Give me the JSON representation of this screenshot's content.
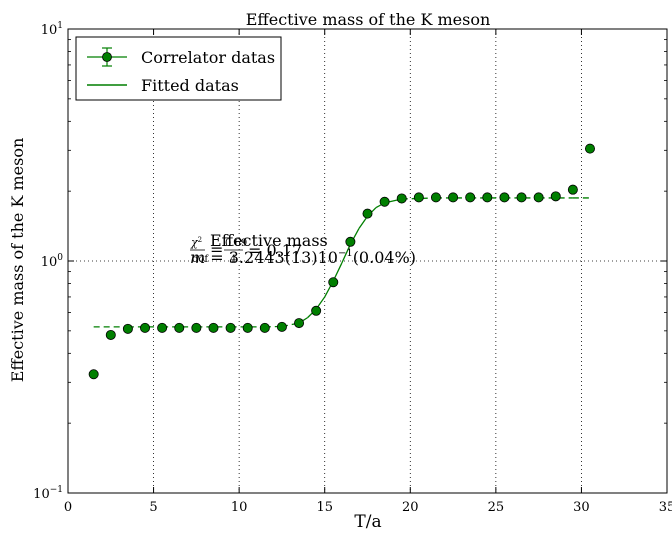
{
  "chart_data": {
    "type": "scatter",
    "title": "Effective mass of the K meson",
    "xlabel": "T/a",
    "ylabel": "Effective mass of the K meson",
    "xlim": [
      0,
      35
    ],
    "ylim": [
      0.1,
      10
    ],
    "y_scale": "log",
    "grid": true,
    "legend_position": "top-left",
    "x_ticks": [
      0,
      5,
      10,
      15,
      20,
      25,
      30,
      35
    ],
    "x_tick_labels": [
      "0",
      "5",
      "10",
      "15",
      "20",
      "25",
      "30",
      "35"
    ],
    "y_ticks": [
      0.1,
      1,
      10
    ],
    "y_tick_bases": [
      "10",
      "10",
      "10"
    ],
    "y_tick_exps": [
      "−1",
      "0",
      "1"
    ],
    "series": [
      {
        "name": "Correlator datas",
        "style": "points-with-errorbars",
        "color": "#007f00",
        "x": [
          1.5,
          2.5,
          3.5,
          4.5,
          5.5,
          6.5,
          7.5,
          8.5,
          9.5,
          10.5,
          11.5,
          12.5,
          13.5,
          14.5,
          15.5,
          16.5,
          17.5,
          18.5,
          19.5,
          20.5,
          21.5,
          22.5,
          23.5,
          24.5,
          25.5,
          26.5,
          27.5,
          28.5,
          29.5,
          30.5
        ],
        "y": [
          0.325,
          0.48,
          0.51,
          0.515,
          0.515,
          0.515,
          0.515,
          0.515,
          0.515,
          0.515,
          0.515,
          0.52,
          0.54,
          0.61,
          0.81,
          1.21,
          1.6,
          1.8,
          1.86,
          1.88,
          1.88,
          1.88,
          1.88,
          1.88,
          1.88,
          1.88,
          1.88,
          1.9,
          2.03,
          3.05
        ]
      },
      {
        "name": "Fitted datas",
        "style": "line",
        "color": "#007f00",
        "x": [
          1.5,
          3.5,
          5.5,
          7.5,
          9.5,
          11.5,
          12.5,
          13.5,
          14.0,
          14.5,
          15.0,
          15.5,
          16.0,
          16.5,
          17.0,
          17.5,
          18.0,
          18.5,
          19.5,
          21.5,
          23.5,
          25.5,
          27.5,
          29.5,
          30.5
        ],
        "y": [
          0.52,
          0.52,
          0.52,
          0.52,
          0.52,
          0.52,
          0.522,
          0.54,
          0.57,
          0.62,
          0.7,
          0.82,
          0.98,
          1.18,
          1.38,
          1.56,
          1.7,
          1.78,
          1.85,
          1.87,
          1.87,
          1.87,
          1.87,
          1.87,
          1.87
        ],
        "solid_range": [
          13.5,
          19.5
        ]
      }
    ],
    "annotation": {
      "heading": "Effective mass",
      "chi_chi": "χ",
      "chi_sq": "2",
      "chi_dof": "dof",
      "chi_num": "0.69",
      "chi_den": "4",
      "chi_val": "= 0.17",
      "mass_text": "m = 3.2443(13)10",
      "mass_exp": "−1",
      "mass_pct": "(0.04%)",
      "x_position": 16.5,
      "y_position": 1.25
    }
  }
}
